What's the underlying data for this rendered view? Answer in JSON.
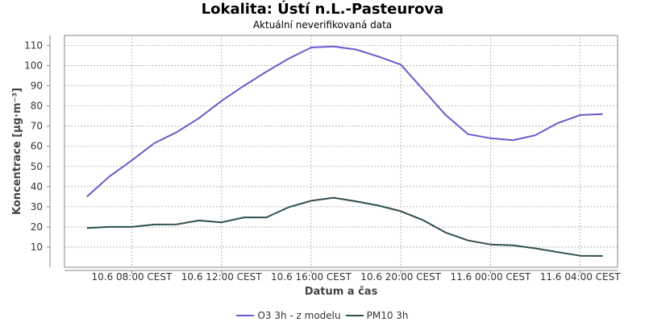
{
  "chart_data": {
    "type": "line",
    "title": "Lokalita: Ústí n.L.-Pasteurova",
    "subtitle": "Aktuální neverifikovaná data",
    "xlabel": "Datum a čas",
    "ylabel": "Koncentrace [µg·m⁻³]",
    "ylim": [
      0,
      115
    ],
    "xlim": [
      "10.6 05:00",
      "11.6 05:40"
    ],
    "grid": true,
    "legend_position": "bottom",
    "x_ticks": [
      "10.6 08:00 CEST",
      "10.6 12:00 CEST",
      "10.6 16:00 CEST",
      "10.6 20:00 CEST",
      "11.6 00:00 CEST",
      "11.6 04:00 CEST"
    ],
    "x_tick_times": [
      "10.6 08:00",
      "10.6 12:00",
      "10.6 16:00",
      "10.6 20:00",
      "11.6 00:00",
      "11.6 04:00"
    ],
    "y_ticks": [
      10,
      20,
      30,
      40,
      50,
      60,
      70,
      80,
      90,
      100,
      110
    ],
    "x": [
      "10.6 06:00",
      "10.6 07:00",
      "10.6 08:00",
      "10.6 09:00",
      "10.6 10:00",
      "10.6 11:00",
      "10.6 12:00",
      "10.6 13:00",
      "10.6 14:00",
      "10.6 15:00",
      "10.6 16:00",
      "10.6 17:00",
      "10.6 18:00",
      "10.6 19:00",
      "10.6 20:00",
      "10.6 21:00",
      "10.6 22:00",
      "10.6 23:00",
      "11.6 00:00",
      "11.6 01:00",
      "11.6 02:00",
      "11.6 03:00",
      "11.6 04:00",
      "11.6 05:00"
    ],
    "series": [
      {
        "name": "O3 3h - z modelu",
        "color": "#6a5acd",
        "values": [
          35,
          45,
          53,
          61.5,
          67,
          74,
          82.5,
          90,
          97,
          103.5,
          109,
          109.5,
          108,
          104.5,
          100.5,
          88,
          75.5,
          66,
          64,
          63,
          65.5,
          71.5,
          75.5,
          76
        ]
      },
      {
        "name": "PM10 3h",
        "color": "#2f4f4f",
        "values": [
          19.5,
          20,
          20,
          21.2,
          21.3,
          23.2,
          22.3,
          24.7,
          24.7,
          29.8,
          33,
          34.5,
          32.7,
          30.6,
          27.8,
          23.3,
          17.2,
          13.3,
          11.3,
          10.9,
          9.4,
          7.5,
          5.7,
          5.6
        ]
      }
    ]
  }
}
